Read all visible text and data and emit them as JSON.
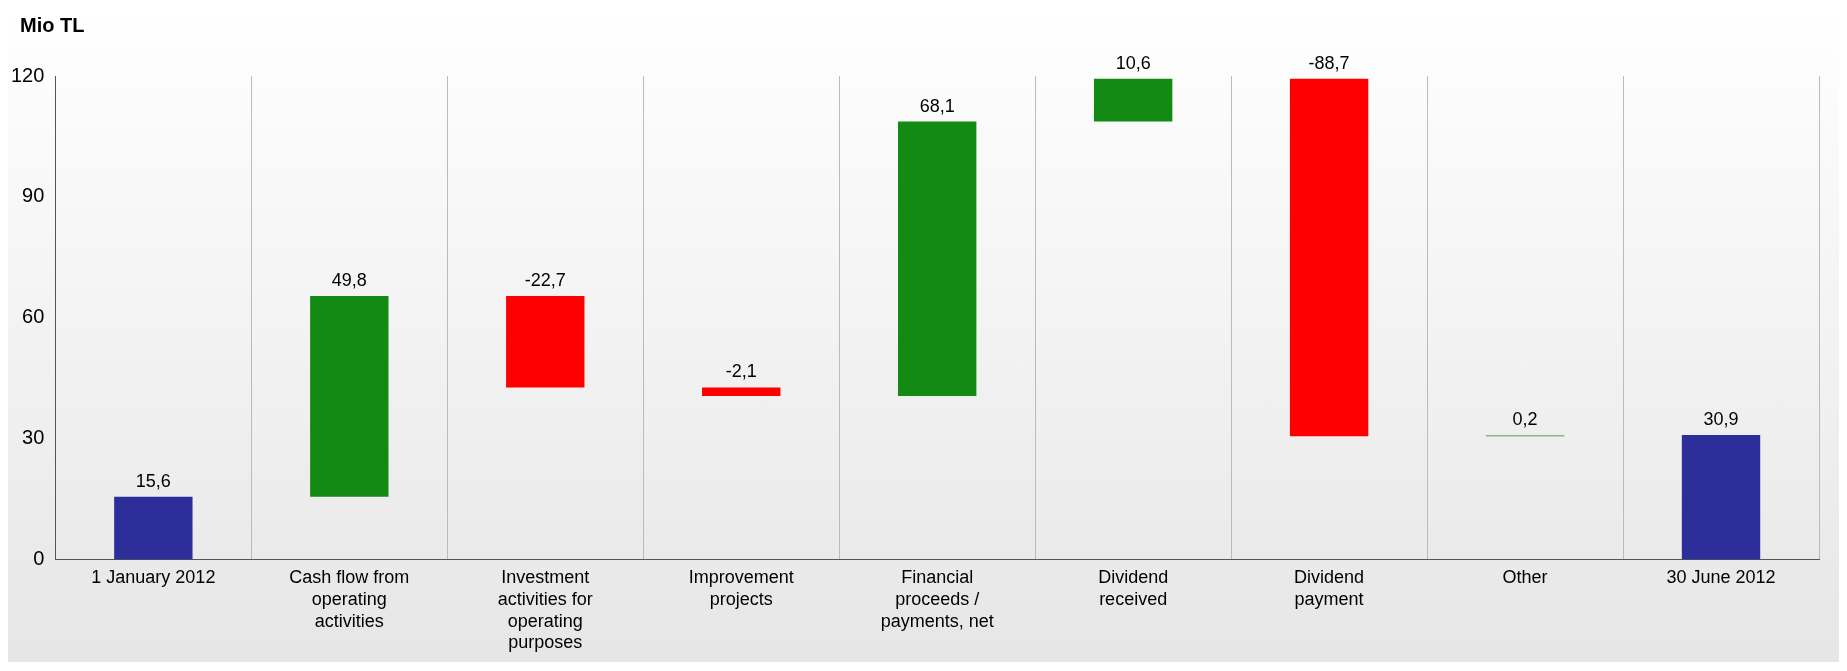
{
  "chart_data": {
    "type": "bar",
    "ylabel": "Mio TL",
    "categories": [
      "1 January 2012",
      "Cash flow from operating activities",
      "Investment activities for operating purposes",
      "Improvement projects",
      "Financial proceeds / payments, net",
      "Dividend received",
      "Dividend payment",
      "Other",
      "30 June 2012"
    ],
    "values": [
      15.6,
      49.8,
      -22.7,
      -2.1,
      68.1,
      10.6,
      -88.7,
      0.2,
      30.9
    ],
    "base": [
      0,
      15.6,
      65.4,
      42.7,
      40.6,
      108.7,
      119.3,
      30.6,
      0
    ],
    "colors": [
      "#2e2e9a",
      "#138a13",
      "#ff0000",
      "#ff0000",
      "#138a13",
      "#138a13",
      "#ff0000",
      "#138a13",
      "#2e2e9a"
    ],
    "value_labels": [
      "15,6",
      "49,8",
      "-22,7",
      "-2,1",
      "68,1",
      "10,6",
      "-88,7",
      "0,2",
      "30,9"
    ],
    "ylim": [
      0,
      120
    ],
    "yticks": [
      0,
      30,
      60,
      90,
      120
    ],
    "grid": "x",
    "legend": false
  }
}
